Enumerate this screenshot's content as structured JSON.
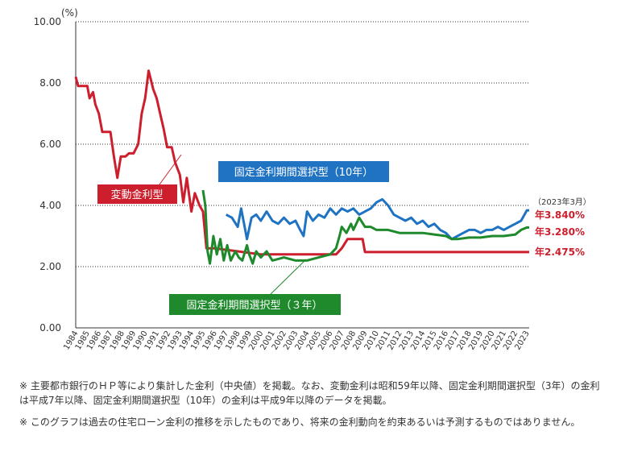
{
  "chart_data": {
    "type": "line",
    "ylabel": "(%)",
    "ylim": [
      0,
      10
    ],
    "yticks": [
      "0.00",
      "2.00",
      "4.00",
      "6.00",
      "8.00",
      "10.00"
    ],
    "xticks": [
      "1984",
      "1985",
      "1986",
      "1987",
      "1988",
      "1989",
      "1990",
      "1991",
      "1992",
      "1993",
      "1994",
      "1995",
      "1996",
      "1997",
      "1998",
      "1999",
      "2000",
      "2001",
      "2002",
      "2003",
      "2004",
      "2005",
      "2006",
      "2007",
      "2008",
      "2009",
      "2010",
      "2011",
      "2012",
      "2013",
      "2014",
      "2015",
      "2016",
      "2017",
      "2018",
      "2019",
      "2020",
      "2021",
      "2022",
      "2023"
    ],
    "grid": "horizontal dotted",
    "as_of_label": "（2023年3月）",
    "series": [
      {
        "name": "変動金利型",
        "color": "#cc1e2c",
        "end_label": "年2.475%",
        "points": [
          [
            1984.0,
            8.2
          ],
          [
            1984.2,
            7.9
          ],
          [
            1985.0,
            7.9
          ],
          [
            1985.2,
            7.5
          ],
          [
            1985.5,
            7.7
          ],
          [
            1985.7,
            7.3
          ],
          [
            1986.0,
            7.0
          ],
          [
            1986.3,
            6.4
          ],
          [
            1987.0,
            6.4
          ],
          [
            1987.3,
            5.6
          ],
          [
            1987.6,
            4.9
          ],
          [
            1987.9,
            5.6
          ],
          [
            1988.3,
            5.6
          ],
          [
            1988.6,
            5.7
          ],
          [
            1989.0,
            5.7
          ],
          [
            1989.4,
            6.0
          ],
          [
            1989.7,
            7.0
          ],
          [
            1990.0,
            7.5
          ],
          [
            1990.3,
            8.4
          ],
          [
            1990.7,
            7.8
          ],
          [
            1991.0,
            7.5
          ],
          [
            1991.3,
            7.0
          ],
          [
            1991.6,
            6.5
          ],
          [
            1991.9,
            5.9
          ],
          [
            1992.3,
            5.9
          ],
          [
            1992.6,
            5.4
          ],
          [
            1993.0,
            5.0
          ],
          [
            1993.3,
            4.1
          ],
          [
            1993.6,
            4.9
          ],
          [
            1994.0,
            3.8
          ],
          [
            1994.3,
            4.4
          ],
          [
            1994.7,
            4.0
          ],
          [
            1995.0,
            3.8
          ],
          [
            1995.3,
            2.6
          ],
          [
            1996.0,
            2.6
          ],
          [
            1997.0,
            2.55
          ],
          [
            1998.0,
            2.5
          ],
          [
            2000.0,
            2.4
          ],
          [
            2006.5,
            2.4
          ],
          [
            2007.0,
            2.6
          ],
          [
            2007.5,
            2.9
          ],
          [
            2008.8,
            2.9
          ],
          [
            2009.0,
            2.475
          ],
          [
            2023.2,
            2.475
          ]
        ]
      },
      {
        "name": "固定金利期間選択型（10年）",
        "color": "#1f73c2",
        "end_label": "年3.840%",
        "points": [
          [
            1997.0,
            3.7
          ],
          [
            1997.5,
            3.6
          ],
          [
            1998.0,
            3.3
          ],
          [
            1998.3,
            3.9
          ],
          [
            1998.8,
            2.9
          ],
          [
            1999.2,
            3.6
          ],
          [
            1999.6,
            3.7
          ],
          [
            2000.0,
            3.5
          ],
          [
            2000.5,
            3.8
          ],
          [
            2001.0,
            3.5
          ],
          [
            2001.5,
            3.4
          ],
          [
            2002.0,
            3.6
          ],
          [
            2002.5,
            3.4
          ],
          [
            2003.0,
            3.5
          ],
          [
            2003.4,
            3.2
          ],
          [
            2003.7,
            3.0
          ],
          [
            2004.0,
            3.8
          ],
          [
            2004.5,
            3.5
          ],
          [
            2005.0,
            3.7
          ],
          [
            2005.5,
            3.6
          ],
          [
            2006.0,
            3.9
          ],
          [
            2006.5,
            3.7
          ],
          [
            2007.0,
            3.9
          ],
          [
            2007.5,
            3.8
          ],
          [
            2008.0,
            3.9
          ],
          [
            2008.5,
            3.7
          ],
          [
            2009.0,
            3.8
          ],
          [
            2009.5,
            3.9
          ],
          [
            2010.0,
            4.1
          ],
          [
            2010.5,
            4.2
          ],
          [
            2011.0,
            4.0
          ],
          [
            2011.5,
            3.7
          ],
          [
            2012.0,
            3.6
          ],
          [
            2012.5,
            3.5
          ],
          [
            2013.0,
            3.6
          ],
          [
            2013.5,
            3.4
          ],
          [
            2014.0,
            3.5
          ],
          [
            2014.5,
            3.3
          ],
          [
            2015.0,
            3.4
          ],
          [
            2015.5,
            3.2
          ],
          [
            2016.0,
            3.1
          ],
          [
            2016.5,
            2.9
          ],
          [
            2017.0,
            3.0
          ],
          [
            2017.5,
            3.1
          ],
          [
            2018.0,
            3.2
          ],
          [
            2018.5,
            3.2
          ],
          [
            2019.0,
            3.1
          ],
          [
            2019.5,
            3.2
          ],
          [
            2020.0,
            3.2
          ],
          [
            2020.5,
            3.3
          ],
          [
            2021.0,
            3.2
          ],
          [
            2021.5,
            3.3
          ],
          [
            2022.0,
            3.4
          ],
          [
            2022.5,
            3.5
          ],
          [
            2023.0,
            3.84
          ],
          [
            2023.2,
            3.84
          ]
        ]
      },
      {
        "name": "固定金利期間選択型（３年）",
        "color": "#1e8a2b",
        "end_label": "年3.280%",
        "points": [
          [
            1995.0,
            4.5
          ],
          [
            1995.2,
            4.0
          ],
          [
            1995.4,
            2.5
          ],
          [
            1995.6,
            2.1
          ],
          [
            1995.9,
            3.0
          ],
          [
            1996.2,
            2.4
          ],
          [
            1996.5,
            2.9
          ],
          [
            1996.8,
            2.2
          ],
          [
            1997.1,
            2.7
          ],
          [
            1997.4,
            2.2
          ],
          [
            1997.8,
            2.5
          ],
          [
            1998.1,
            2.3
          ],
          [
            1998.4,
            2.2
          ],
          [
            1998.8,
            2.7
          ],
          [
            1999.0,
            2.4
          ],
          [
            1999.3,
            2.1
          ],
          [
            1999.6,
            2.5
          ],
          [
            2000.0,
            2.3
          ],
          [
            2000.5,
            2.5
          ],
          [
            2001.0,
            2.2
          ],
          [
            2002.0,
            2.3
          ],
          [
            2003.0,
            2.2
          ],
          [
            2004.0,
            2.2
          ],
          [
            2005.0,
            2.3
          ],
          [
            2006.0,
            2.4
          ],
          [
            2006.5,
            2.6
          ],
          [
            2006.8,
            3.0
          ],
          [
            2007.0,
            3.3
          ],
          [
            2007.4,
            3.1
          ],
          [
            2007.8,
            3.4
          ],
          [
            2008.0,
            3.2
          ],
          [
            2008.5,
            3.6
          ],
          [
            2009.0,
            3.3
          ],
          [
            2009.5,
            3.3
          ],
          [
            2010.0,
            3.2
          ],
          [
            2011.0,
            3.2
          ],
          [
            2012.0,
            3.1
          ],
          [
            2013.0,
            3.1
          ],
          [
            2014.0,
            3.1
          ],
          [
            2015.0,
            3.05
          ],
          [
            2016.0,
            3.0
          ],
          [
            2016.5,
            2.9
          ],
          [
            2017.0,
            2.9
          ],
          [
            2018.0,
            2.95
          ],
          [
            2019.0,
            2.95
          ],
          [
            2020.0,
            3.0
          ],
          [
            2021.0,
            3.0
          ],
          [
            2022.0,
            3.05
          ],
          [
            2022.5,
            3.2
          ],
          [
            2023.0,
            3.28
          ],
          [
            2023.2,
            3.28
          ]
        ]
      }
    ]
  },
  "notes": [
    "※ 主要都市銀行のＨＰ等により集計した金利（中央値）を掲載。なお、変動金利は昭和59年以降、固定金利期間選択型（3年）の金利は平成7年以降、固定金利期間選択型（10年）の金利は平成9年以降のデータを掲載。",
    "※ このグラフは過去の住宅ローン金利の推移を示したものであり、将来の金利動向を約束あるいは予測するものではありません。"
  ]
}
